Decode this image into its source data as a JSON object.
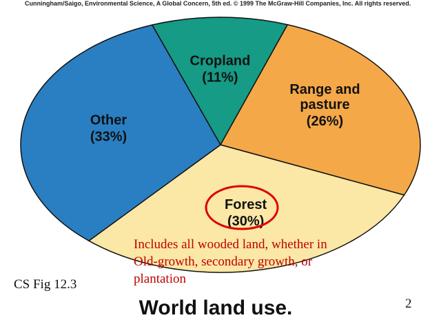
{
  "header": "Cunningham/Saigo, Environmental Science, A Global Concern, 5th ed. © 1999 The McGraw-Hill Companies, Inc. All rights reserved.",
  "chart_data": {
    "type": "pie",
    "title": "World land use.",
    "categories": [
      "Cropland",
      "Range and pasture",
      "Forest",
      "Other"
    ],
    "values": [
      11,
      26,
      30,
      33
    ],
    "value_labels": [
      "(11%)",
      "(26%)",
      "(30%)",
      "(33%)"
    ],
    "colors": [
      "#159b86",
      "#f4a848",
      "#fbe7a6",
      "#2a7fc2"
    ],
    "annotation": [
      "Includes all wooded land, whether in",
      "Old-growth, secondary growth, or",
      "plantation"
    ]
  },
  "figure_label": "CS Fig 12.3",
  "slide_number": "2"
}
